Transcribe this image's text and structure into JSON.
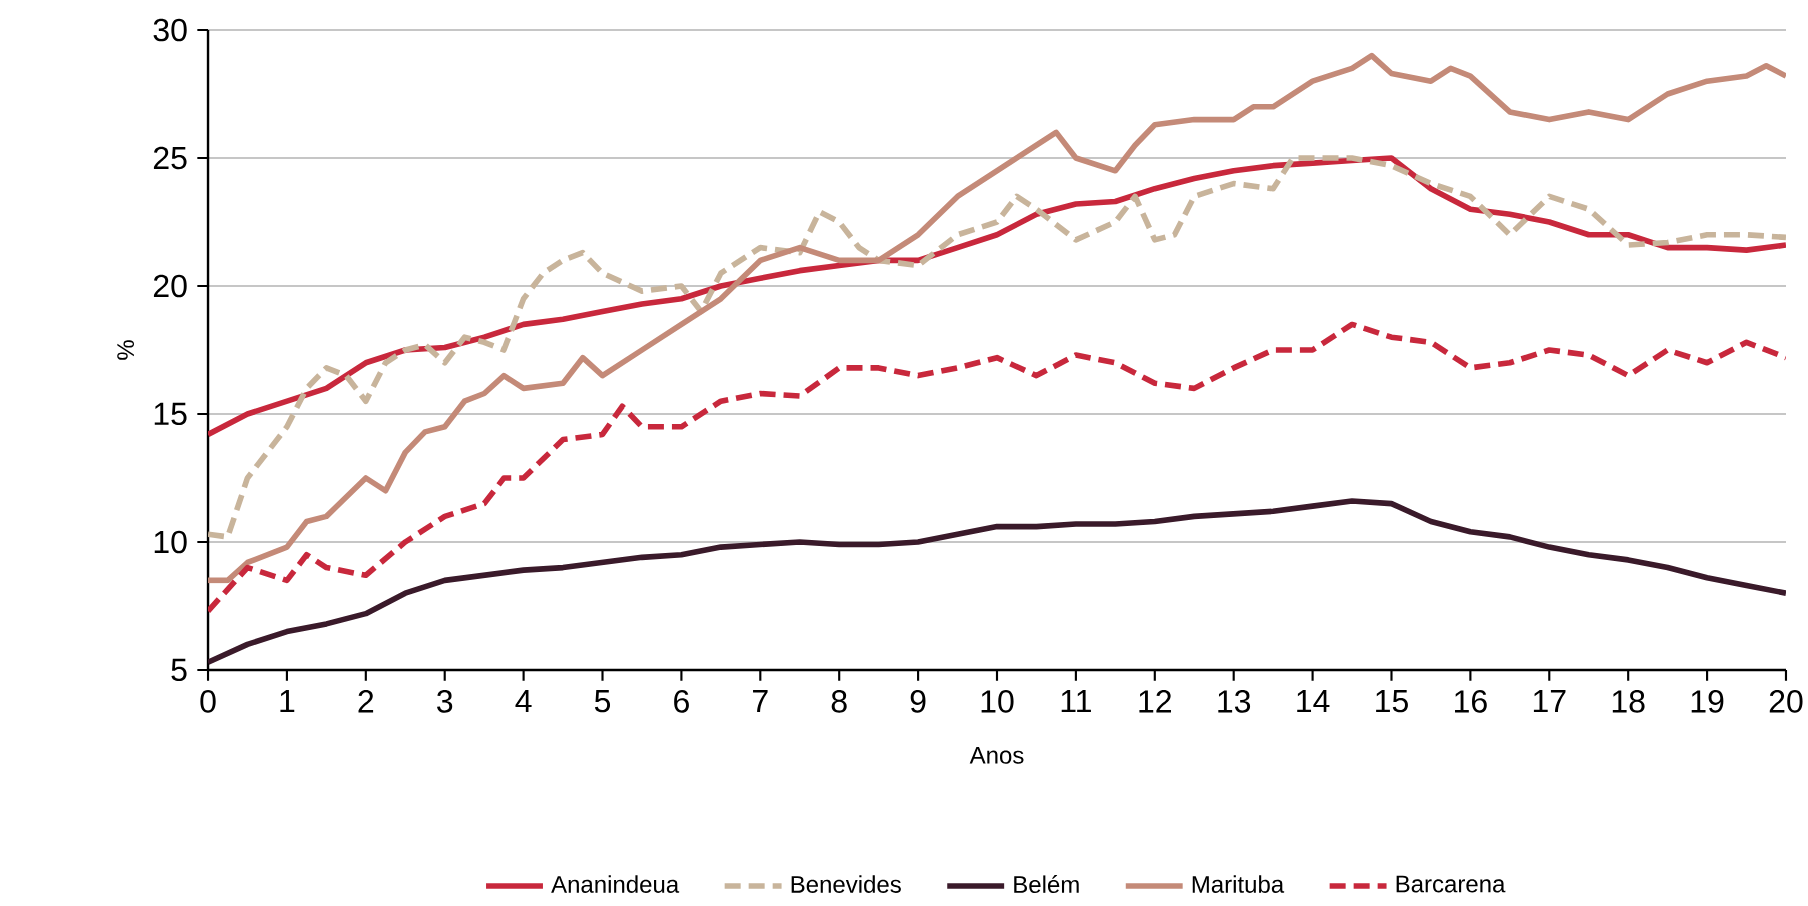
{
  "chart_data": {
    "type": "line",
    "xlabel": "Anos",
    "ylabel": "%",
    "xlim": [
      0,
      20
    ],
    "ylim": [
      5,
      30
    ],
    "xticks": [
      0,
      1,
      2,
      3,
      4,
      5,
      6,
      7,
      8,
      9,
      10,
      11,
      12,
      13,
      14,
      15,
      16,
      17,
      18,
      19,
      20
    ],
    "yticks": [
      5,
      10,
      15,
      20,
      25,
      30
    ],
    "grid": "y",
    "legend": "bottom",
    "marker": "none",
    "series": [
      {
        "name": "Ananindeua",
        "color": "#c8283c",
        "line_style": "solid",
        "x": [
          0,
          0.5,
          1,
          1.5,
          2,
          2.5,
          3,
          3.5,
          4,
          4.5,
          5,
          5.5,
          6,
          6.5,
          7,
          7.5,
          8,
          8.5,
          9,
          9.5,
          10,
          10.5,
          11,
          11.5,
          12,
          12.5,
          13,
          13.5,
          14,
          14.5,
          15,
          15.5,
          16,
          16.5,
          17,
          17.5,
          18,
          18.5,
          19,
          19.5,
          20
        ],
        "values": [
          14.2,
          15.0,
          15.5,
          16.0,
          17.0,
          17.5,
          17.6,
          18.0,
          18.5,
          18.7,
          19.0,
          19.3,
          19.5,
          20.0,
          20.3,
          20.6,
          20.8,
          21.0,
          21.0,
          21.5,
          22.0,
          22.8,
          23.2,
          23.3,
          23.8,
          24.2,
          24.5,
          24.7,
          24.8,
          24.9,
          25.0,
          23.8,
          23.0,
          22.8,
          22.5,
          22.0,
          22.0,
          21.5,
          21.5,
          21.4,
          21.6
        ]
      },
      {
        "name": "Benevides",
        "color": "#c8b49b",
        "line_style": "dashed",
        "x": [
          0,
          0.25,
          0.5,
          0.75,
          1,
          1.25,
          1.5,
          1.75,
          2,
          2.25,
          2.5,
          2.75,
          3,
          3.25,
          3.5,
          3.75,
          4,
          4.25,
          4.5,
          4.75,
          5,
          5.5,
          6,
          6.25,
          6.5,
          7,
          7.5,
          7.75,
          8,
          8.25,
          8.5,
          9,
          9.5,
          10,
          10.25,
          10.5,
          11,
          11.5,
          11.75,
          12,
          12.25,
          12.5,
          13,
          13.5,
          13.75,
          14,
          14.5,
          15,
          15.5,
          16,
          16.5,
          17,
          17.5,
          18,
          18.5,
          19,
          19.5,
          20
        ],
        "values": [
          10.3,
          10.2,
          12.5,
          13.5,
          14.5,
          16.0,
          16.8,
          16.5,
          15.5,
          17.0,
          17.5,
          17.7,
          17.0,
          18.0,
          17.8,
          17.5,
          19.5,
          20.5,
          21.0,
          21.3,
          20.5,
          19.8,
          20.0,
          19.0,
          20.5,
          21.5,
          21.3,
          22.9,
          22.5,
          21.5,
          21.0,
          20.8,
          22.0,
          22.5,
          23.5,
          23.0,
          21.8,
          22.5,
          23.5,
          21.8,
          22.0,
          23.5,
          24.0,
          23.8,
          25.0,
          25.0,
          25.0,
          24.7,
          24.0,
          23.5,
          22.0,
          23.5,
          23.0,
          21.6,
          21.7,
          22.0,
          22.0,
          21.9
        ]
      },
      {
        "name": "Belém",
        "color": "#3a1a2a",
        "line_style": "solid",
        "x": [
          0,
          0.5,
          1,
          1.5,
          2,
          2.5,
          3,
          3.5,
          4,
          4.5,
          5,
          5.5,
          6,
          6.5,
          7,
          7.5,
          8,
          8.5,
          9,
          9.5,
          10,
          10.5,
          11,
          11.5,
          12,
          12.5,
          13,
          13.5,
          14,
          14.5,
          15,
          15.5,
          16,
          16.5,
          17,
          17.5,
          18,
          18.5,
          19,
          19.5,
          20
        ],
        "values": [
          5.3,
          6.0,
          6.5,
          6.8,
          7.2,
          8.0,
          8.5,
          8.7,
          8.9,
          9.0,
          9.2,
          9.4,
          9.5,
          9.8,
          9.9,
          10.0,
          9.9,
          9.9,
          10.0,
          10.3,
          10.6,
          10.6,
          10.7,
          10.7,
          10.8,
          11.0,
          11.1,
          11.2,
          11.4,
          11.6,
          11.5,
          10.8,
          10.4,
          10.2,
          9.8,
          9.5,
          9.3,
          9.0,
          8.6,
          8.3,
          8.0
        ]
      },
      {
        "name": "Marituba",
        "color": "#c48a78",
        "line_style": "solid",
        "x": [
          0,
          0.25,
          0.5,
          1,
          1.25,
          1.5,
          2,
          2.25,
          2.5,
          2.75,
          3,
          3.25,
          3.5,
          3.75,
          4,
          4.5,
          4.75,
          5,
          5.5,
          6,
          6.5,
          7,
          7.5,
          8,
          8.5,
          9,
          9.5,
          10,
          10.5,
          10.75,
          11,
          11.5,
          11.75,
          12,
          12.5,
          13,
          13.25,
          13.5,
          14,
          14.5,
          14.75,
          15,
          15.5,
          15.75,
          16,
          16.5,
          17,
          17.5,
          18,
          18.5,
          19,
          19.5,
          19.75,
          20
        ],
        "values": [
          8.5,
          8.5,
          9.2,
          9.8,
          10.8,
          11.0,
          12.5,
          12.0,
          13.5,
          14.3,
          14.5,
          15.5,
          15.8,
          16.5,
          16.0,
          16.2,
          17.2,
          16.5,
          17.5,
          18.5,
          19.5,
          21.0,
          21.5,
          21.0,
          21.0,
          22.0,
          23.5,
          24.5,
          25.5,
          26.0,
          25.0,
          24.5,
          25.5,
          26.3,
          26.5,
          26.5,
          27.0,
          27.0,
          28.0,
          28.5,
          29.0,
          28.3,
          28.0,
          28.5,
          28.2,
          26.8,
          26.5,
          26.8,
          26.5,
          27.5,
          28.0,
          28.2,
          28.6,
          28.2
        ]
      },
      {
        "name": "Barcarena",
        "color": "#c8283c",
        "line_style": "dashed",
        "x": [
          0,
          0.5,
          1,
          1.25,
          1.5,
          2,
          2.5,
          3,
          3.5,
          3.75,
          4,
          4.5,
          5,
          5.25,
          5.5,
          6,
          6.5,
          7,
          7.5,
          8,
          8.5,
          9,
          9.5,
          10,
          10.5,
          11,
          11.5,
          12,
          12.5,
          13,
          13.5,
          14,
          14.5,
          15,
          15.5,
          16,
          16.5,
          17,
          17.5,
          18,
          18.5,
          19,
          19.5,
          20
        ],
        "values": [
          7.3,
          9.0,
          8.5,
          9.5,
          9.0,
          8.7,
          10.0,
          11.0,
          11.5,
          12.5,
          12.5,
          14.0,
          14.2,
          15.3,
          14.5,
          14.5,
          15.5,
          15.8,
          15.7,
          16.8,
          16.8,
          16.5,
          16.8,
          17.2,
          16.5,
          17.3,
          17.0,
          16.2,
          16.0,
          16.8,
          17.5,
          17.5,
          18.5,
          18.0,
          17.8,
          16.8,
          17.0,
          17.5,
          17.3,
          16.5,
          17.5,
          17.0,
          17.8,
          17.2
        ]
      }
    ]
  }
}
